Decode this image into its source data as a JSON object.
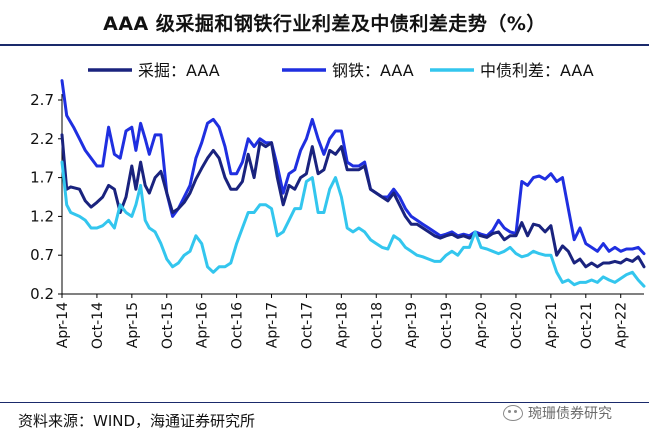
{
  "chart_data": {
    "type": "line",
    "title": "AAA 级采掘和钢铁行业利差及中债利差走势（%）",
    "xlabel": "",
    "ylabel": "",
    "ylim": [
      0.2,
      2.7
    ],
    "yticks": [
      "2.7",
      "2.2",
      "1.7",
      "1.2",
      "0.7",
      "0.2"
    ],
    "x_range": [
      0,
      100
    ],
    "xtick_labels": [
      "Apr-14",
      "Oct-14",
      "Apr-15",
      "Oct-15",
      "Apr-16",
      "Oct-16",
      "Apr-17",
      "Oct-17",
      "Apr-18",
      "Oct-18",
      "Apr-19",
      "Oct-19",
      "Apr-20",
      "Oct-20",
      "Apr-21",
      "Oct-21",
      "Apr-22"
    ],
    "xtick_positions": [
      0,
      6,
      12,
      18,
      24,
      30,
      36,
      42,
      48,
      54,
      60,
      66,
      72,
      78,
      84,
      90,
      96
    ],
    "legend_position": "top",
    "series": [
      {
        "name": "采掘：AAA",
        "color": "#1a237e",
        "width": 3,
        "points": [
          [
            0,
            2.25
          ],
          [
            0.8,
            1.55
          ],
          [
            1.5,
            1.58
          ],
          [
            3,
            1.55
          ],
          [
            4,
            1.4
          ],
          [
            5,
            1.32
          ],
          [
            6,
            1.38
          ],
          [
            7,
            1.45
          ],
          [
            8,
            1.6
          ],
          [
            9,
            1.55
          ],
          [
            10,
            1.25
          ],
          [
            11,
            1.45
          ],
          [
            12,
            1.85
          ],
          [
            12.7,
            1.55
          ],
          [
            13.5,
            1.9
          ],
          [
            14.3,
            1.6
          ],
          [
            15,
            1.5
          ],
          [
            16,
            1.7
          ],
          [
            17,
            1.78
          ],
          [
            18,
            1.5
          ],
          [
            19,
            1.25
          ],
          [
            20,
            1.3
          ],
          [
            21,
            1.38
          ],
          [
            22,
            1.5
          ],
          [
            23,
            1.68
          ],
          [
            24,
            1.82
          ],
          [
            25,
            1.95
          ],
          [
            26,
            2.05
          ],
          [
            27,
            1.95
          ],
          [
            28,
            1.7
          ],
          [
            29,
            1.55
          ],
          [
            30,
            1.55
          ],
          [
            31,
            1.65
          ],
          [
            32,
            2.0
          ],
          [
            33,
            1.7
          ],
          [
            34,
            2.15
          ],
          [
            35,
            2.1
          ],
          [
            36,
            2.15
          ],
          [
            37,
            1.7
          ],
          [
            38,
            1.35
          ],
          [
            39,
            1.6
          ],
          [
            40,
            1.55
          ],
          [
            41,
            1.7
          ],
          [
            42,
            1.75
          ],
          [
            43,
            2.1
          ],
          [
            44,
            1.75
          ],
          [
            45,
            1.8
          ],
          [
            46,
            2.05
          ],
          [
            47,
            2.0
          ],
          [
            48,
            2.1
          ],
          [
            49,
            1.8
          ],
          [
            50,
            1.8
          ],
          [
            51,
            1.8
          ],
          [
            52,
            1.85
          ],
          [
            53,
            1.55
          ],
          [
            54,
            1.5
          ],
          [
            55,
            1.45
          ],
          [
            56,
            1.4
          ],
          [
            57,
            1.5
          ],
          [
            58,
            1.35
          ],
          [
            59,
            1.2
          ],
          [
            60,
            1.1
          ],
          [
            61,
            1.1
          ],
          [
            62,
            1.05
          ],
          [
            63,
            1.0
          ],
          [
            64,
            0.95
          ],
          [
            65,
            0.92
          ],
          [
            66,
            0.95
          ],
          [
            67,
            0.97
          ],
          [
            68,
            0.93
          ],
          [
            69,
            0.95
          ],
          [
            70,
            0.92
          ],
          [
            71,
            0.97
          ],
          [
            72,
            0.95
          ],
          [
            73,
            0.93
          ],
          [
            74,
            0.98
          ],
          [
            75,
            1.0
          ],
          [
            76,
            0.9
          ],
          [
            77,
            0.95
          ],
          [
            78,
            0.95
          ],
          [
            79,
            1.12
          ],
          [
            80,
            0.95
          ],
          [
            81,
            1.1
          ],
          [
            82,
            1.08
          ],
          [
            83,
            1.0
          ],
          [
            84,
            1.08
          ],
          [
            85,
            0.7
          ],
          [
            86,
            0.82
          ],
          [
            87,
            0.75
          ],
          [
            88,
            0.6
          ],
          [
            89,
            0.65
          ],
          [
            90,
            0.55
          ],
          [
            91,
            0.6
          ],
          [
            92,
            0.55
          ],
          [
            93,
            0.6
          ],
          [
            94,
            0.6
          ],
          [
            95,
            0.62
          ],
          [
            96,
            0.6
          ],
          [
            97,
            0.65
          ],
          [
            98,
            0.62
          ],
          [
            99,
            0.68
          ],
          [
            100,
            0.55
          ]
        ]
      },
      {
        "name": "钢铁：AAA",
        "color": "#1f2fe0",
        "width": 3,
        "points": [
          [
            0,
            2.95
          ],
          [
            0.8,
            2.5
          ],
          [
            2,
            2.35
          ],
          [
            3,
            2.2
          ],
          [
            4,
            2.05
          ],
          [
            5,
            1.95
          ],
          [
            6,
            1.85
          ],
          [
            7,
            1.85
          ],
          [
            8,
            2.35
          ],
          [
            9,
            2.0
          ],
          [
            10,
            1.95
          ],
          [
            11,
            2.3
          ],
          [
            12,
            2.35
          ],
          [
            12.7,
            2.05
          ],
          [
            13.5,
            2.4
          ],
          [
            14.3,
            2.2
          ],
          [
            15,
            2.0
          ],
          [
            16,
            2.25
          ],
          [
            17,
            2.25
          ],
          [
            18,
            1.5
          ],
          [
            19,
            1.2
          ],
          [
            20,
            1.3
          ],
          [
            21,
            1.45
          ],
          [
            22,
            1.6
          ],
          [
            23,
            1.95
          ],
          [
            24,
            2.15
          ],
          [
            25,
            2.4
          ],
          [
            26,
            2.45
          ],
          [
            27,
            2.35
          ],
          [
            28,
            2.1
          ],
          [
            29,
            1.75
          ],
          [
            30,
            1.75
          ],
          [
            31,
            1.9
          ],
          [
            32,
            2.2
          ],
          [
            33,
            2.1
          ],
          [
            34,
            2.2
          ],
          [
            35,
            2.15
          ],
          [
            36,
            2.15
          ],
          [
            37,
            1.85
          ],
          [
            38,
            1.5
          ],
          [
            39,
            1.75
          ],
          [
            40,
            1.8
          ],
          [
            41,
            2.05
          ],
          [
            42,
            2.2
          ],
          [
            43,
            2.45
          ],
          [
            44,
            2.2
          ],
          [
            45,
            2.0
          ],
          [
            46,
            2.2
          ],
          [
            47,
            2.3
          ],
          [
            48,
            2.3
          ],
          [
            49,
            1.9
          ],
          [
            50,
            1.85
          ],
          [
            51,
            1.85
          ],
          [
            52,
            1.9
          ],
          [
            53,
            1.55
          ],
          [
            54,
            1.5
          ],
          [
            55,
            1.45
          ],
          [
            56,
            1.45
          ],
          [
            57,
            1.55
          ],
          [
            58,
            1.45
          ],
          [
            59,
            1.3
          ],
          [
            60,
            1.2
          ],
          [
            61,
            1.15
          ],
          [
            62,
            1.1
          ],
          [
            63,
            1.05
          ],
          [
            64,
            1.0
          ],
          [
            65,
            0.95
          ],
          [
            66,
            0.97
          ],
          [
            67,
            1.0
          ],
          [
            68,
            0.95
          ],
          [
            69,
            0.97
          ],
          [
            70,
            0.95
          ],
          [
            71,
            1.0
          ],
          [
            72,
            0.97
          ],
          [
            73,
            0.95
          ],
          [
            74,
            1.02
          ],
          [
            75,
            1.15
          ],
          [
            76,
            1.05
          ],
          [
            77,
            1.0
          ],
          [
            78,
            0.98
          ],
          [
            79,
            1.65
          ],
          [
            80,
            1.6
          ],
          [
            81,
            1.7
          ],
          [
            82,
            1.72
          ],
          [
            83,
            1.68
          ],
          [
            84,
            1.75
          ],
          [
            85,
            1.65
          ],
          [
            86,
            1.7
          ],
          [
            87,
            1.3
          ],
          [
            88,
            0.9
          ],
          [
            89,
            1.05
          ],
          [
            90,
            0.85
          ],
          [
            91,
            0.8
          ],
          [
            92,
            0.75
          ],
          [
            93,
            0.85
          ],
          [
            94,
            0.75
          ],
          [
            95,
            0.8
          ],
          [
            96,
            0.75
          ],
          [
            97,
            0.78
          ],
          [
            98,
            0.78
          ],
          [
            99,
            0.8
          ],
          [
            100,
            0.72
          ]
        ]
      },
      {
        "name": "中债利差：AAA",
        "color": "#33c6ee",
        "width": 3,
        "points": [
          [
            0,
            1.9
          ],
          [
            0.8,
            1.35
          ],
          [
            1.5,
            1.25
          ],
          [
            3,
            1.2
          ],
          [
            4,
            1.15
          ],
          [
            5,
            1.05
          ],
          [
            6,
            1.05
          ],
          [
            7,
            1.08
          ],
          [
            8,
            1.15
          ],
          [
            9,
            1.05
          ],
          [
            10,
            1.35
          ],
          [
            11,
            1.25
          ],
          [
            12,
            1.2
          ],
          [
            12.7,
            1.35
          ],
          [
            13.5,
            1.6
          ],
          [
            14.3,
            1.15
          ],
          [
            15,
            1.05
          ],
          [
            16,
            1.0
          ],
          [
            17,
            0.85
          ],
          [
            18,
            0.65
          ],
          [
            19,
            0.55
          ],
          [
            20,
            0.6
          ],
          [
            21,
            0.7
          ],
          [
            22,
            0.75
          ],
          [
            23,
            0.95
          ],
          [
            24,
            0.85
          ],
          [
            25,
            0.55
          ],
          [
            26,
            0.48
          ],
          [
            27,
            0.55
          ],
          [
            28,
            0.55
          ],
          [
            29,
            0.6
          ],
          [
            30,
            0.85
          ],
          [
            31,
            1.05
          ],
          [
            32,
            1.25
          ],
          [
            33,
            1.25
          ],
          [
            34,
            1.35
          ],
          [
            35,
            1.35
          ],
          [
            36,
            1.3
          ],
          [
            37,
            0.95
          ],
          [
            38,
            1.0
          ],
          [
            39,
            1.15
          ],
          [
            40,
            1.3
          ],
          [
            41,
            1.3
          ],
          [
            42,
            1.65
          ],
          [
            43,
            1.7
          ],
          [
            44,
            1.25
          ],
          [
            45,
            1.25
          ],
          [
            46,
            1.55
          ],
          [
            47,
            1.7
          ],
          [
            48,
            1.45
          ],
          [
            49,
            1.05
          ],
          [
            50,
            1.0
          ],
          [
            51,
            1.05
          ],
          [
            52,
            1.0
          ],
          [
            53,
            0.9
          ],
          [
            54,
            0.85
          ],
          [
            55,
            0.8
          ],
          [
            56,
            0.78
          ],
          [
            57,
            0.95
          ],
          [
            58,
            0.9
          ],
          [
            59,
            0.8
          ],
          [
            60,
            0.75
          ],
          [
            61,
            0.7
          ],
          [
            62,
            0.68
          ],
          [
            63,
            0.65
          ],
          [
            64,
            0.62
          ],
          [
            65,
            0.62
          ],
          [
            66,
            0.7
          ],
          [
            67,
            0.75
          ],
          [
            68,
            0.7
          ],
          [
            69,
            0.8
          ],
          [
            70,
            0.8
          ],
          [
            71,
            1.0
          ],
          [
            72,
            0.8
          ],
          [
            73,
            0.78
          ],
          [
            74,
            0.75
          ],
          [
            75,
            0.72
          ],
          [
            76,
            0.75
          ],
          [
            77,
            0.8
          ],
          [
            78,
            0.72
          ],
          [
            79,
            0.68
          ],
          [
            80,
            0.7
          ],
          [
            81,
            0.75
          ],
          [
            82,
            0.72
          ],
          [
            83,
            0.7
          ],
          [
            84,
            0.7
          ],
          [
            85,
            0.48
          ],
          [
            86,
            0.35
          ],
          [
            87,
            0.38
          ],
          [
            88,
            0.32
          ],
          [
            89,
            0.35
          ],
          [
            90,
            0.35
          ],
          [
            91,
            0.38
          ],
          [
            92,
            0.35
          ],
          [
            93,
            0.42
          ],
          [
            94,
            0.38
          ],
          [
            95,
            0.35
          ],
          [
            96,
            0.4
          ],
          [
            97,
            0.45
          ],
          [
            98,
            0.48
          ],
          [
            99,
            0.38
          ],
          [
            100,
            0.3
          ]
        ]
      }
    ]
  },
  "footer": {
    "source": "资料来源：WIND，海通证券研究所",
    "watermark": "琬珊债券研究"
  }
}
